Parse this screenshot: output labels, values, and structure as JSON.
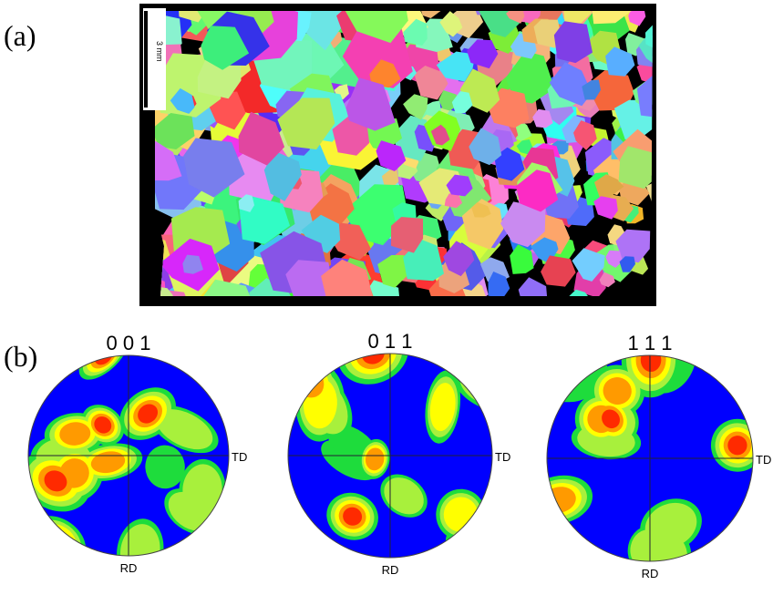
{
  "panel_a": {
    "label": "(a)",
    "scale_bar": "3 mm"
  },
  "panel_b": {
    "label": "(b)",
    "pole_figures": [
      {
        "title": "0 0 1",
        "td": "TD",
        "rd": "RD"
      },
      {
        "title": "0 1 1",
        "td": "TD",
        "rd": "RD"
      },
      {
        "title": "1 1 1",
        "td": "TD",
        "rd": "RD"
      }
    ]
  }
}
